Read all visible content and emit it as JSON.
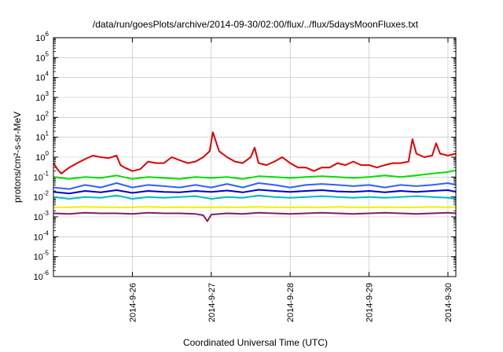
{
  "chart_data": {
    "type": "line",
    "title": "/data/run/goesPlots/archive/2014-09-30/02:00/flux/../flux/5daysMoonFluxes.txt",
    "xlabel": "Coordinated Universal Time (UTC)",
    "ylabel": "protons/cm²-s-sr-MeV",
    "yscale": "log",
    "ylim": [
      1e-06,
      1000000.0
    ],
    "xlim": [
      0,
      5.1
    ],
    "grid": true,
    "x_ticks": [
      {
        "x": 1,
        "label": "2014-9-26"
      },
      {
        "x": 2,
        "label": "2014-9-27"
      },
      {
        "x": 3,
        "label": "2014-9-28"
      },
      {
        "x": 4,
        "label": "2014-9-29"
      },
      {
        "x": 5,
        "label": "2014-9-30"
      }
    ],
    "y_ticks": [
      {
        "exp": 6,
        "label": "10",
        "sup": "6"
      },
      {
        "exp": 5,
        "label": "10",
        "sup": "5"
      },
      {
        "exp": 4,
        "label": "10",
        "sup": "4"
      },
      {
        "exp": 3,
        "label": "10",
        "sup": "3"
      },
      {
        "exp": 2,
        "label": "10",
        "sup": "2"
      },
      {
        "exp": 1,
        "label": "10",
        "sup": "1"
      },
      {
        "exp": 0,
        "label": "10",
        "sup": "0"
      },
      {
        "exp": -1,
        "label": "10",
        "sup": "-1"
      },
      {
        "exp": -2,
        "label": "10",
        "sup": "-2"
      },
      {
        "exp": -3,
        "label": "10",
        "sup": "-3"
      },
      {
        "exp": -4,
        "label": "10",
        "sup": "-4"
      },
      {
        "exp": -5,
        "label": "10",
        "sup": "-5"
      },
      {
        "exp": -6,
        "label": "10",
        "sup": "-6"
      }
    ],
    "series": [
      {
        "color": "#e00000",
        "x": [
          0,
          0.05,
          0.1,
          0.2,
          0.3,
          0.4,
          0.5,
          0.6,
          0.7,
          0.8,
          0.85,
          0.9,
          1.0,
          1.1,
          1.2,
          1.3,
          1.4,
          1.5,
          1.6,
          1.7,
          1.8,
          1.9,
          1.98,
          2.02,
          2.1,
          2.2,
          2.3,
          2.4,
          2.5,
          2.55,
          2.6,
          2.7,
          2.8,
          2.9,
          3.0,
          3.1,
          3.2,
          3.3,
          3.4,
          3.5,
          3.6,
          3.7,
          3.8,
          3.9,
          4.0,
          4.1,
          4.2,
          4.3,
          4.4,
          4.5,
          4.55,
          4.6,
          4.7,
          4.8,
          4.85,
          4.9,
          5.0,
          5.1
        ],
        "y": [
          0.5,
          0.25,
          0.15,
          0.3,
          0.5,
          0.8,
          1.2,
          1.0,
          0.9,
          1.2,
          0.4,
          0.3,
          0.2,
          0.25,
          0.6,
          0.5,
          0.5,
          1.0,
          0.7,
          0.5,
          0.6,
          1.0,
          2.0,
          18,
          2.0,
          1.0,
          0.6,
          0.5,
          1.0,
          3.0,
          0.5,
          0.4,
          0.6,
          1.0,
          0.5,
          0.3,
          0.3,
          0.2,
          0.3,
          0.3,
          0.5,
          0.4,
          0.6,
          0.4,
          0.4,
          0.3,
          0.4,
          0.5,
          0.5,
          0.6,
          8.0,
          1.5,
          1.0,
          1.2,
          5.0,
          1.5,
          1.2,
          1.5
        ]
      },
      {
        "color": "#00e000",
        "x": [
          0,
          0.2,
          0.4,
          0.6,
          0.8,
          1.0,
          1.2,
          1.4,
          1.6,
          1.8,
          2.0,
          2.2,
          2.4,
          2.6,
          2.8,
          3.0,
          3.2,
          3.4,
          3.6,
          3.8,
          4.0,
          4.2,
          4.4,
          4.6,
          4.8,
          5.0,
          5.1
        ],
        "y": [
          0.1,
          0.08,
          0.1,
          0.09,
          0.12,
          0.08,
          0.1,
          0.09,
          0.08,
          0.1,
          0.09,
          0.1,
          0.08,
          0.11,
          0.1,
          0.09,
          0.1,
          0.11,
          0.1,
          0.09,
          0.1,
          0.12,
          0.1,
          0.12,
          0.15,
          0.18,
          0.22
        ]
      },
      {
        "color": "#00bfbf",
        "x": [
          0,
          0.2,
          0.4,
          0.6,
          0.8,
          1.0,
          1.2,
          1.4,
          1.6,
          1.8,
          2.0,
          2.2,
          2.4,
          2.6,
          2.8,
          3.0,
          3.2,
          3.4,
          3.6,
          3.8,
          4.0,
          4.2,
          4.4,
          4.6,
          4.8,
          5.0,
          5.1
        ],
        "y": [
          0.01,
          0.008,
          0.01,
          0.009,
          0.012,
          0.008,
          0.01,
          0.009,
          0.01,
          0.011,
          0.008,
          0.01,
          0.009,
          0.012,
          0.01,
          0.009,
          0.01,
          0.011,
          0.01,
          0.009,
          0.01,
          0.009,
          0.01,
          0.011,
          0.01,
          0.009,
          0.008
        ]
      },
      {
        "color": "#3060ff",
        "x": [
          0,
          0.2,
          0.4,
          0.6,
          0.8,
          1.0,
          1.2,
          1.4,
          1.6,
          1.8,
          2.0,
          2.2,
          2.4,
          2.6,
          2.8,
          3.0,
          3.2,
          3.4,
          3.6,
          3.8,
          4.0,
          4.2,
          4.4,
          4.6,
          4.8,
          5.0,
          5.1
        ],
        "y": [
          0.03,
          0.025,
          0.04,
          0.03,
          0.05,
          0.03,
          0.04,
          0.035,
          0.03,
          0.04,
          0.03,
          0.045,
          0.03,
          0.05,
          0.04,
          0.03,
          0.04,
          0.045,
          0.04,
          0.035,
          0.04,
          0.03,
          0.04,
          0.035,
          0.04,
          0.05,
          0.04
        ]
      },
      {
        "color": "#0000d0",
        "x": [
          0,
          0.2,
          0.4,
          0.6,
          0.8,
          1.0,
          1.2,
          1.4,
          1.6,
          1.8,
          2.0,
          2.2,
          2.4,
          2.6,
          2.8,
          3.0,
          3.2,
          3.4,
          3.6,
          3.8,
          4.0,
          4.2,
          4.4,
          4.6,
          4.8,
          5.0,
          5.1
        ],
        "y": [
          0.018,
          0.015,
          0.02,
          0.017,
          0.022,
          0.016,
          0.02,
          0.018,
          0.017,
          0.02,
          0.018,
          0.021,
          0.017,
          0.023,
          0.02,
          0.018,
          0.02,
          0.022,
          0.019,
          0.018,
          0.02,
          0.017,
          0.02,
          0.018,
          0.02,
          0.022,
          0.018
        ]
      },
      {
        "color": "#f0f000",
        "x": [
          0,
          0.2,
          0.4,
          0.6,
          0.8,
          1.0,
          1.2,
          1.4,
          1.6,
          1.8,
          2.0,
          2.2,
          2.4,
          2.6,
          2.8,
          3.0,
          3.2,
          3.4,
          3.6,
          3.8,
          4.0,
          4.2,
          4.4,
          4.6,
          4.8,
          5.0,
          5.1
        ],
        "y": [
          0.003,
          0.003,
          0.0032,
          0.0031,
          0.003,
          0.003,
          0.0032,
          0.003,
          0.0031,
          0.003,
          0.003,
          0.0031,
          0.003,
          0.0032,
          0.003,
          0.003,
          0.0031,
          0.003,
          0.0032,
          0.003,
          0.003,
          0.0031,
          0.003,
          0.003,
          0.0032,
          0.003,
          0.0031
        ]
      },
      {
        "color": "#802060",
        "x": [
          0,
          0.2,
          0.4,
          0.6,
          0.8,
          1.0,
          1.2,
          1.4,
          1.6,
          1.8,
          1.9,
          1.95,
          2.0,
          2.2,
          2.4,
          2.6,
          2.8,
          3.0,
          3.2,
          3.4,
          3.6,
          3.8,
          4.0,
          4.2,
          4.4,
          4.6,
          4.8,
          5.0,
          5.1
        ],
        "y": [
          0.0015,
          0.0014,
          0.0016,
          0.0015,
          0.0015,
          0.0014,
          0.0016,
          0.0015,
          0.0015,
          0.0014,
          0.0012,
          0.0006,
          0.0013,
          0.0015,
          0.0014,
          0.0016,
          0.0015,
          0.0014,
          0.0015,
          0.0016,
          0.0015,
          0.0014,
          0.0015,
          0.0016,
          0.0015,
          0.0014,
          0.0015,
          0.0016,
          0.0015
        ]
      }
    ]
  }
}
